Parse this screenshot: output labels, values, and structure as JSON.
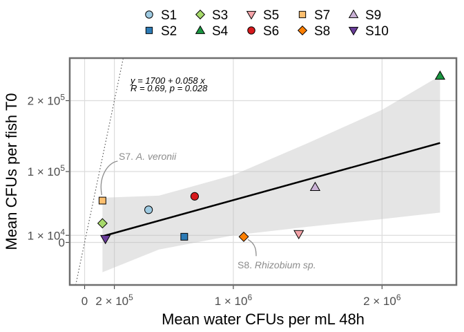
{
  "chart_data": {
    "type": "scatter",
    "xlabel": "Mean water CFUs per mL 48h",
    "ylabel": "Mean CFUs per fish T0",
    "xlim": [
      -100000.0,
      2500000.0
    ],
    "ylim": [
      -60000.0,
      260000.0
    ],
    "grid": true,
    "legend_position": "top",
    "x_ticks": [
      {
        "value": 0,
        "mant": "0",
        "exp": ""
      },
      {
        "value": 200000,
        "mant": "2 × 10",
        "exp": "5"
      },
      {
        "value": 1000000,
        "mant": "1 × 10",
        "exp": "6"
      },
      {
        "value": 2000000,
        "mant": "2 × 10",
        "exp": "6"
      }
    ],
    "y_ticks": [
      {
        "value": 0,
        "mant": "0",
        "exp": ""
      },
      {
        "value": 10000,
        "mant": "1 × 10",
        "exp": "4"
      },
      {
        "value": 100000,
        "mant": "1 × 10",
        "exp": "5"
      },
      {
        "value": 200000,
        "mant": "2 × 10",
        "exp": "5"
      }
    ],
    "series": [
      {
        "name": "S1",
        "shape": "circle",
        "color": "#9ecae1",
        "x": 430000,
        "y": 46000
      },
      {
        "name": "S2",
        "shape": "square",
        "color": "#2c7bb6",
        "x": 670000,
        "y": 8000
      },
      {
        "name": "S3",
        "shape": "diamond",
        "color": "#a6d96a",
        "x": 120000,
        "y": 27000
      },
      {
        "name": "S4",
        "shape": "triangle-up",
        "color": "#1a9641",
        "x": 2390000,
        "y": 235000
      },
      {
        "name": "S5",
        "shape": "triangle-down",
        "color": "#f4a3a8",
        "x": 1440000,
        "y": 12000
      },
      {
        "name": "S6",
        "shape": "circle",
        "color": "#d7191c",
        "x": 740000,
        "y": 65000
      },
      {
        "name": "S7",
        "shape": "square",
        "color": "#fdbf6f",
        "x": 120000,
        "y": 59000
      },
      {
        "name": "S8",
        "shape": "diamond",
        "color": "#ff7f00",
        "x": 1070000,
        "y": 8000
      },
      {
        "name": "S9",
        "shape": "triangle-up",
        "color": "#cab2d6",
        "x": 1550000,
        "y": 78000
      },
      {
        "name": "S10",
        "shape": "triangle-down",
        "color": "#6a3d9a",
        "x": 140000,
        "y": 5000
      }
    ],
    "fit": {
      "intercept": 1700,
      "slope": 0.058,
      "x_from": 120000,
      "x_to": 2390000
    },
    "ci_band": [
      {
        "x": 120000,
        "lo": -42000,
        "hi": 63000
      },
      {
        "x": 500000,
        "lo": -10000,
        "hi": 66000
      },
      {
        "x": 1000000,
        "lo": 10000,
        "hi": 95000
      },
      {
        "x": 1500000,
        "lo": 22000,
        "hi": 140000
      },
      {
        "x": 2000000,
        "lo": 33000,
        "hi": 187000
      },
      {
        "x": 2390000,
        "lo": 42000,
        "hi": 235000
      }
    ],
    "identity_line": {
      "x_from": -10000,
      "x_to": 280000
    },
    "annotations": {
      "equation": "y = 1700 + 0.058 x",
      "stats": "R = 0.69, p = 0.028",
      "s7_label": "S7. ",
      "s7_species": "A. veronii",
      "s8_label": "S8. ",
      "s8_species": "Rhizobium sp."
    }
  }
}
